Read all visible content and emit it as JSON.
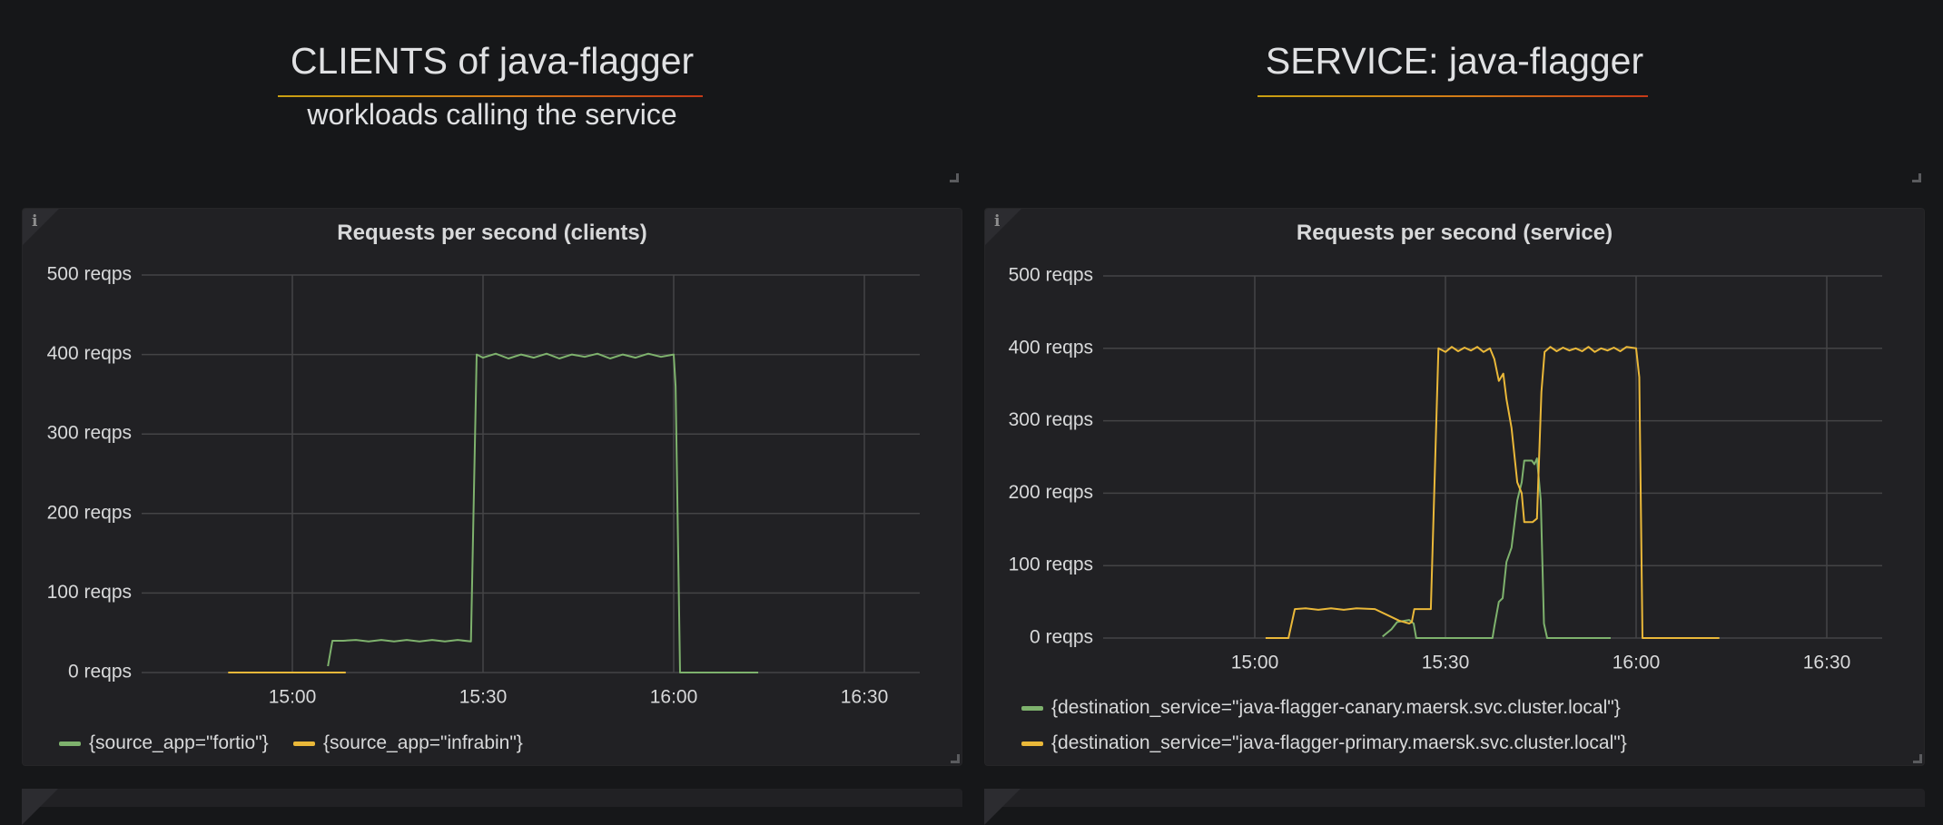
{
  "header_left": {
    "title": "CLIENTS of java-flagger",
    "subtitle": "workloads calling the service"
  },
  "header_right": {
    "title": "SERVICE: java-flagger"
  },
  "panels": [
    {
      "title": "Requests per second (clients)",
      "info_icon": "i",
      "legend": [
        {
          "label": "{source_app=\"fortio\"}",
          "color": "#7eb26d"
        },
        {
          "label": "{source_app=\"infrabin\"}",
          "color": "#eab839"
        }
      ]
    },
    {
      "title": "Requests per second (service)",
      "info_icon": "i",
      "legend": [
        {
          "label": "{destination_service=\"java-flagger-canary.maersk.svc.cluster.local\"}",
          "color": "#7eb26d"
        },
        {
          "label": "{destination_service=\"java-flagger-primary.maersk.svc.cluster.local\"}",
          "color": "#eab839"
        }
      ]
    }
  ],
  "colors": {
    "background": "#161719",
    "panel": "#212124",
    "grid": "#444446",
    "green": "#7eb26d",
    "yellow": "#eab839",
    "underline_start": "#c9a012",
    "underline_end": "#c53a17"
  },
  "chart_data": [
    {
      "type": "line",
      "title": "Requests per second (clients)",
      "xlabel": "",
      "ylabel": "",
      "x_unit": "minutes after 15:00",
      "x_ticks": [
        "15:00",
        "15:30",
        "16:00",
        "16:30"
      ],
      "x_tick_minutes": [
        0,
        30,
        60,
        90
      ],
      "y_ticks": [
        "0 reqps",
        "100 reqps",
        "200 reqps",
        "300 reqps",
        "400 reqps",
        "500 reqps"
      ],
      "ylim": [
        0,
        500
      ],
      "xlim": [
        -23.7,
        98.7
      ],
      "grid": true,
      "legend_position": "bottom",
      "series": [
        {
          "name": "{source_app=\"fortio\"}",
          "color": "#7eb26d",
          "points": [
            [
              5.6,
              8
            ],
            [
              6.3,
              40
            ],
            [
              8,
              40
            ],
            [
              10,
              41
            ],
            [
              12,
              39
            ],
            [
              14,
              41
            ],
            [
              16,
              39
            ],
            [
              18,
              41
            ],
            [
              20,
              39
            ],
            [
              22,
              41
            ],
            [
              24,
              39
            ],
            [
              26,
              41
            ],
            [
              28.1,
              39
            ],
            [
              29.0,
              400
            ],
            [
              30,
              396
            ],
            [
              32,
              401
            ],
            [
              34,
              395
            ],
            [
              36,
              400
            ],
            [
              38,
              396
            ],
            [
              40,
              401
            ],
            [
              42,
              395
            ],
            [
              44,
              400
            ],
            [
              46,
              397
            ],
            [
              48,
              401
            ],
            [
              50,
              395
            ],
            [
              52,
              400
            ],
            [
              54,
              396
            ],
            [
              56,
              401
            ],
            [
              58,
              397
            ],
            [
              60.0,
              400
            ],
            [
              60.3,
              360
            ],
            [
              61.0,
              0
            ],
            [
              73.3,
              0
            ]
          ]
        },
        {
          "name": "{source_app=\"infrabin\"}",
          "color": "#eab839",
          "points": [
            [
              -10.1,
              0
            ],
            [
              8.4,
              0
            ]
          ]
        }
      ]
    },
    {
      "type": "line",
      "title": "Requests per second (service)",
      "xlabel": "",
      "ylabel": "",
      "x_unit": "minutes after 15:00",
      "x_ticks": [
        "15:00",
        "15:30",
        "16:00",
        "16:30"
      ],
      "x_tick_minutes": [
        0,
        30,
        60,
        90
      ],
      "y_ticks": [
        "0 reqps",
        "100 reqps",
        "200 reqps",
        "300 reqps",
        "400 reqps",
        "500 reqps"
      ],
      "ylim": [
        0,
        500
      ],
      "xlim": [
        -23.9,
        98.7
      ],
      "grid": true,
      "legend_position": "bottom",
      "series": [
        {
          "name": "{destination_service=\"java-flagger-canary.maersk.svc.cluster.local\"}",
          "color": "#7eb26d",
          "points": [
            [
              20.1,
              2
            ],
            [
              21.5,
              12
            ],
            [
              22.4,
              22
            ],
            [
              24.3,
              25
            ],
            [
              25.0,
              20
            ],
            [
              25.4,
              0
            ],
            [
              37.4,
              0
            ],
            [
              37.7,
              16
            ],
            [
              38.4,
              50
            ],
            [
              39.0,
              55
            ],
            [
              39.6,
              105
            ],
            [
              40.4,
              125
            ],
            [
              41.3,
              190
            ],
            [
              42.0,
              215
            ],
            [
              42.4,
              245
            ],
            [
              43.6,
              245
            ],
            [
              44.0,
              240
            ],
            [
              44.4,
              248
            ],
            [
              45.0,
              190
            ],
            [
              45.5,
              20
            ],
            [
              46.0,
              0
            ],
            [
              56.0,
              0
            ]
          ]
        },
        {
          "name": "{destination_service=\"java-flagger-primary.maersk.svc.cluster.local\"}",
          "color": "#eab839",
          "points": [
            [
              1.7,
              0
            ],
            [
              5.3,
              0
            ],
            [
              6.3,
              40
            ],
            [
              8,
              41
            ],
            [
              10,
              39
            ],
            [
              12,
              41
            ],
            [
              14,
              39
            ],
            [
              16,
              41
            ],
            [
              18.9,
              40
            ],
            [
              22.7,
              24
            ],
            [
              24.3,
              20
            ],
            [
              24.7,
              22
            ],
            [
              25.1,
              40
            ],
            [
              27.7,
              40
            ],
            [
              28.9,
              400
            ],
            [
              30,
              395
            ],
            [
              31,
              402
            ],
            [
              32,
              396
            ],
            [
              33,
              401
            ],
            [
              34,
              397
            ],
            [
              35,
              402
            ],
            [
              36,
              395
            ],
            [
              37.0,
              400
            ],
            [
              37.7,
              385
            ],
            [
              38.4,
              355
            ],
            [
              39.1,
              365
            ],
            [
              39.6,
              330
            ],
            [
              40.4,
              290
            ],
            [
              41.3,
              215
            ],
            [
              42.0,
              200
            ],
            [
              42.4,
              160
            ],
            [
              43.7,
              160
            ],
            [
              44.4,
              165
            ],
            [
              45.1,
              340
            ],
            [
              45.6,
              395
            ],
            [
              46.5,
              402
            ],
            [
              47.5,
              396
            ],
            [
              48.5,
              401
            ],
            [
              49.5,
              397
            ],
            [
              50.5,
              400
            ],
            [
              51.5,
              396
            ],
            [
              52.5,
              402
            ],
            [
              53.5,
              395
            ],
            [
              54.5,
              400
            ],
            [
              55.5,
              397
            ],
            [
              56.5,
              401
            ],
            [
              57.5,
              396
            ],
            [
              58.5,
              402
            ],
            [
              60.0,
              400
            ],
            [
              60.5,
              360
            ],
            [
              61.0,
              0
            ],
            [
              73.1,
              0
            ]
          ]
        }
      ]
    }
  ]
}
